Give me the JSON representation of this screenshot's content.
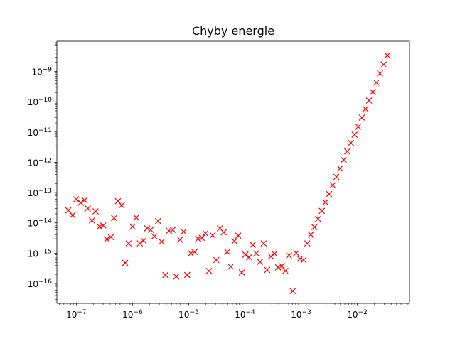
{
  "chart_data": {
    "type": "scatter",
    "title": "Chyby energie",
    "xlabel": "",
    "ylabel": "",
    "xscale": "log",
    "yscale": "log",
    "xlim": [
      4.5e-08,
      0.085
    ],
    "ylim": [
      2.2e-17,
      1e-08
    ],
    "grid": false,
    "legend": "none",
    "marker": "x",
    "marker_color": "#ff0000",
    "x_ticks": [
      {
        "value": 1e-07,
        "base": "10",
        "exp": "−7"
      },
      {
        "value": 1e-06,
        "base": "10",
        "exp": "−6"
      },
      {
        "value": 1e-05,
        "base": "10",
        "exp": "−5"
      },
      {
        "value": 0.0001,
        "base": "10",
        "exp": "−4"
      },
      {
        "value": 0.001,
        "base": "10",
        "exp": "−3"
      },
      {
        "value": 0.01,
        "base": "10",
        "exp": "−2"
      }
    ],
    "y_ticks": [
      {
        "value": 1e-16,
        "base": "10",
        "exp": "−16"
      },
      {
        "value": 1e-15,
        "base": "10",
        "exp": "−15"
      },
      {
        "value": 1e-14,
        "base": "10",
        "exp": "−14"
      },
      {
        "value": 1e-13,
        "base": "10",
        "exp": "−13"
      },
      {
        "value": 1e-12,
        "base": "10",
        "exp": "−12"
      },
      {
        "value": 1e-11,
        "base": "10",
        "exp": "−11"
      },
      {
        "value": 1e-10,
        "base": "10",
        "exp": "−10"
      },
      {
        "value": 1e-09,
        "base": "10",
        "exp": "−9"
      }
    ],
    "series": [
      {
        "points": [
          [
            7.2e-08,
            2.6e-14
          ],
          [
            8.6e-08,
            1.8e-14
          ],
          [
            1e-07,
            6e-14
          ],
          [
            1.2e-07,
            4.6e-14
          ],
          [
            1.4e-07,
            5.6e-14
          ],
          [
            1.6e-07,
            3e-14
          ],
          [
            1.9e-07,
            1.2e-14
          ],
          [
            2.2e-07,
            2.4e-14
          ],
          [
            2.6e-07,
            7.5e-15
          ],
          [
            3e-07,
            8.2e-15
          ],
          [
            3.5e-07,
            2.9e-15
          ],
          [
            4.1e-07,
            3.4e-15
          ],
          [
            4.7e-07,
            1.45e-14
          ],
          [
            5.5e-07,
            5.2e-14
          ],
          [
            6.4e-07,
            3.8e-14
          ],
          [
            7.4e-07,
            4.8e-16
          ],
          [
            8.5e-07,
            2.1e-15
          ],
          [
            1e-06,
            7.5e-15
          ],
          [
            1.17e-06,
            1.5e-14
          ],
          [
            1.35e-06,
            2.1e-15
          ],
          [
            1.57e-06,
            2.6e-15
          ],
          [
            1.82e-06,
            6.6e-15
          ],
          [
            2.1e-06,
            5.9e-15
          ],
          [
            2.45e-06,
            3.6e-15
          ],
          [
            2.85e-06,
            1.15e-14
          ],
          [
            3.3e-06,
            2.4e-15
          ],
          [
            3.85e-06,
            1.9e-16
          ],
          [
            4.45e-06,
            5.5e-15
          ],
          [
            5.2e-06,
            5.9e-15
          ],
          [
            6e-06,
            1.7e-16
          ],
          [
            7e-06,
            2.8e-15
          ],
          [
            8.1e-06,
            5.1e-15
          ],
          [
            9.4e-06,
            1.9e-16
          ],
          [
            1.09e-05,
            9.8e-16
          ],
          [
            1.27e-05,
            1.1e-15
          ],
          [
            1.47e-05,
            3e-15
          ],
          [
            1.71e-05,
            3.2e-15
          ],
          [
            1.98e-05,
            4.5e-15
          ],
          [
            2.3e-05,
            2.6e-16
          ],
          [
            2.67e-05,
            3.9e-15
          ],
          [
            3.1e-05,
            5.9e-16
          ],
          [
            3.6e-05,
            6.6e-15
          ],
          [
            4.2e-05,
            4.9e-15
          ],
          [
            4.85e-05,
            1.1e-15
          ],
          [
            5.6e-05,
            3.6e-16
          ],
          [
            6.5e-05,
            2.5e-15
          ],
          [
            7.6e-05,
            3.8e-15
          ],
          [
            8.8e-05,
            2.3e-16
          ],
          [
            0.000102,
            9e-16
          ],
          [
            0.000119,
            7.3e-16
          ],
          [
            0.000138,
            1.9e-15
          ],
          [
            0.00016,
            9.8e-16
          ],
          [
            0.000186,
            5.2e-16
          ],
          [
            0.000216,
            2.1e-15
          ],
          [
            0.00025,
            2.8e-16
          ],
          [
            0.00029,
            7.8e-16
          ],
          [
            0.000337,
            9.6e-16
          ],
          [
            0.00039,
            3.4e-16
          ],
          [
            0.000453,
            3.8e-16
          ],
          [
            0.000526,
            2.6e-16
          ],
          [
            0.00061,
            8.4e-16
          ],
          [
            0.00071,
            5.6e-17
          ],
          [
            0.00082,
            1e-15
          ],
          [
            0.000955,
            6.6e-16
          ],
          [
            0.00111,
            5.9e-16
          ],
          [
            0.00129,
            2.1e-15
          ],
          [
            0.00149,
            4.1e-15
          ],
          [
            0.00173,
            7.3e-15
          ],
          [
            0.00201,
            1.35e-14
          ],
          [
            0.00234,
            2.5e-14
          ],
          [
            0.00271,
            4.8e-14
          ],
          [
            0.00315,
            9e-14
          ],
          [
            0.00366,
            1.75e-13
          ],
          [
            0.00425,
            3.3e-13
          ],
          [
            0.00493,
            6.3e-13
          ],
          [
            0.00572,
            1.2e-12
          ],
          [
            0.00664,
            2.3e-12
          ],
          [
            0.00771,
            4.4e-12
          ],
          [
            0.00895,
            8.2e-12
          ],
          [
            0.0104,
            1.5e-11
          ],
          [
            0.0121,
            3e-11
          ],
          [
            0.014,
            5.8e-11
          ],
          [
            0.0162,
            1.1e-10
          ],
          [
            0.0189,
            2.1e-10
          ],
          [
            0.0219,
            4.3e-10
          ],
          [
            0.0254,
            8.6e-10
          ],
          [
            0.0295,
            1.7e-09
          ],
          [
            0.0343,
            3.4e-09
          ]
        ]
      }
    ]
  }
}
